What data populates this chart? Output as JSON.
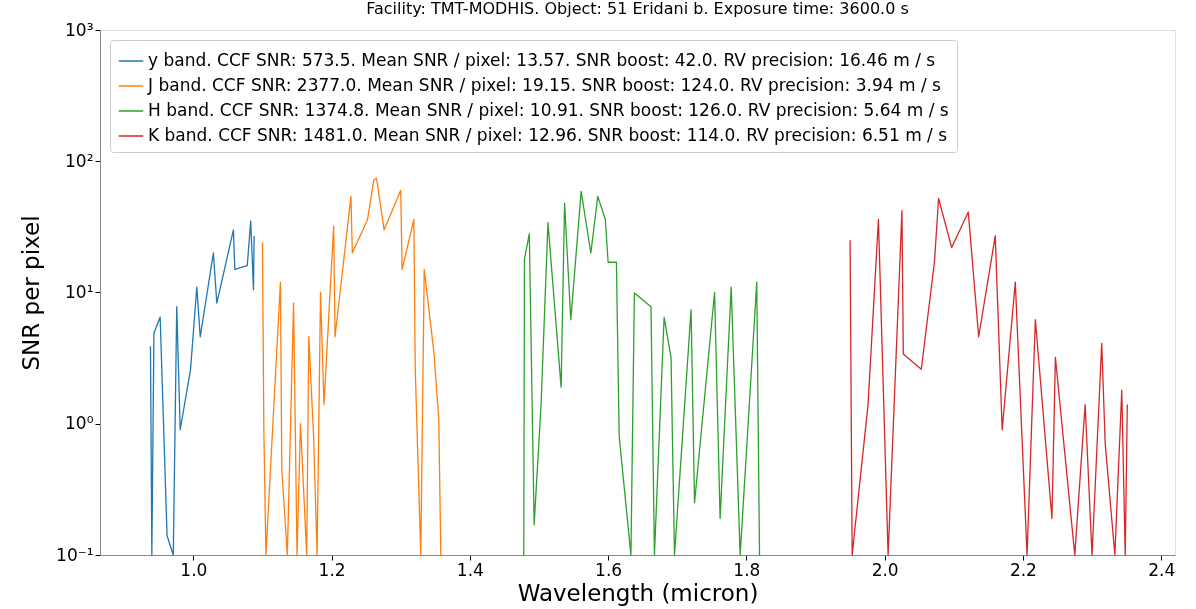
{
  "chart_data": {
    "type": "line",
    "title": "Facility: TMT-MODHIS. Object: 51 Eridani b. Exposure time: 3600.0 s",
    "xlabel": "Wavelength (micron)",
    "ylabel": "SNR per pixel",
    "log": "y",
    "legend": "top left",
    "xlim": [
      0.865,
      2.42
    ],
    "ylim": [
      0.1,
      1000
    ],
    "xticks": [
      {
        "value": 1.0,
        "label": "1.0"
      },
      {
        "value": 1.2,
        "label": "1.2"
      },
      {
        "value": 1.4,
        "label": "1.4"
      },
      {
        "value": 1.6,
        "label": "1.6"
      },
      {
        "value": 1.8,
        "label": "1.8"
      },
      {
        "value": 2.0,
        "label": "2.0"
      },
      {
        "value": 2.2,
        "label": "2.2"
      },
      {
        "value": 2.4,
        "label": "2.4"
      }
    ],
    "yticks": [
      {
        "value": 0.1,
        "label": "10⁻¹"
      },
      {
        "value": 1,
        "label": "10⁰"
      },
      {
        "value": 10,
        "label": "10¹"
      },
      {
        "value": 100,
        "label": "10²"
      },
      {
        "value": 1000,
        "label": "10³"
      }
    ],
    "series": [
      {
        "name": "y band. CCF SNR: 573.5. Mean SNR / pixel: 13.57. SNR boost: 42.0. RV precision: 16.46 m / s",
        "color": "#1f77b4",
        "x": [
          0.938,
          0.94,
          0.943,
          0.952,
          0.962,
          0.971,
          0.976,
          0.981,
          0.996,
          1.005,
          1.01,
          1.029,
          1.034,
          1.058,
          1.06,
          1.078,
          1.083,
          1.087,
          1.088
        ],
        "values": [
          3.9,
          0.1,
          4.9,
          6.5,
          0.14,
          0.1,
          7.8,
          0.9,
          2.6,
          11,
          4.6,
          20,
          8.3,
          30,
          15,
          16,
          35,
          10.5,
          27
        ]
      },
      {
        "name": "J band. CCF SNR: 2377.0. Mean SNR / pixel: 19.15. SNR boost: 124.0. RV precision: 3.94 m / s",
        "color": "#ff7f0e",
        "x": [
          1.1,
          1.102,
          1.105,
          1.126,
          1.128,
          1.136,
          1.145,
          1.15,
          1.155,
          1.164,
          1.167,
          1.174,
          1.179,
          1.184,
          1.189,
          1.203,
          1.205,
          1.228,
          1.23,
          1.252,
          1.261,
          1.265,
          1.276,
          1.3,
          1.302,
          1.319,
          1.321,
          1.329,
          1.334,
          1.348,
          1.355,
          1.358
        ],
        "values": [
          24,
          0.9,
          0.1,
          12,
          0.44,
          0.1,
          8.3,
          0.1,
          1.0,
          0.1,
          4.6,
          0.8,
          0.1,
          10,
          1.4,
          32,
          4.6,
          54,
          20,
          36,
          72,
          74,
          30,
          60,
          15,
          36,
          2.6,
          0.1,
          15,
          3.5,
          1.1,
          0.1
        ]
      },
      {
        "name": "H band. CCF SNR: 1374.8. Mean SNR / pixel: 10.91. SNR boost: 126.0. RV precision: 5.64 m / s",
        "color": "#2ca02c",
        "x": [
          1.478,
          1.479,
          1.486,
          1.493,
          1.503,
          1.513,
          1.532,
          1.537,
          1.546,
          1.561,
          1.575,
          1.585,
          1.596,
          1.6,
          1.612,
          1.616,
          1.633,
          1.638,
          1.662,
          1.667,
          1.681,
          1.691,
          1.696,
          1.72,
          1.725,
          1.754,
          1.762,
          1.778,
          1.791,
          1.815,
          1.819
        ],
        "values": [
          0.1,
          18,
          28,
          0.17,
          1.4,
          34,
          1.9,
          48,
          6.2,
          59,
          20,
          54,
          36,
          17,
          17,
          0.8,
          0.1,
          9.9,
          7.8,
          0.1,
          6.5,
          3.2,
          0.1,
          7.4,
          0.25,
          10,
          0.19,
          11,
          0.1,
          12,
          0.1
        ]
      },
      {
        "name": "K band. CCF SNR: 1481.0. Mean SNR / pixel: 12.96. SNR boost: 114.0. RV precision: 6.51 m / s",
        "color": "#d62728",
        "x": [
          1.95,
          1.953,
          1.976,
          1.991,
          2.005,
          2.025,
          2.027,
          2.053,
          2.072,
          2.078,
          2.097,
          2.121,
          2.136,
          2.16,
          2.17,
          2.189,
          2.206,
          2.218,
          2.242,
          2.247,
          2.275,
          2.29,
          2.3,
          2.314,
          2.319,
          2.333,
          2.343,
          2.348,
          2.351
        ],
        "values": [
          25,
          0.1,
          1.4,
          36,
          0.1,
          42,
          3.4,
          2.6,
          17,
          52,
          22,
          41,
          4.6,
          27,
          0.9,
          12,
          0.1,
          6.2,
          0.19,
          3.2,
          0.1,
          1.4,
          0.1,
          4.1,
          0.71,
          0.1,
          1.8,
          0.1,
          1.4
        ]
      }
    ]
  }
}
